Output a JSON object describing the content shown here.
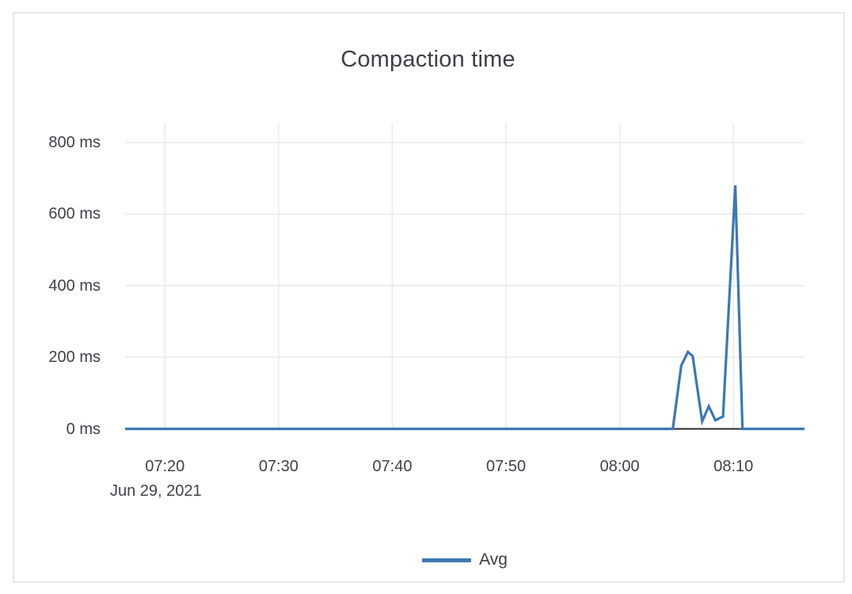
{
  "colors": {
    "line": "#3c78b4",
    "grid": "#ebebeb",
    "zero_axis": "#2a2a2a",
    "card_border": "#e7e7e7",
    "text": "#3e4349"
  },
  "chart_data": {
    "type": "line",
    "title": "Compaction time",
    "x_axis": {
      "date_label": "Jun 29, 2021",
      "ticks": [
        "07:20",
        "07:30",
        "07:40",
        "07:50",
        "08:00",
        "08:10"
      ],
      "range": [
        "07:16:30",
        "08:16:15"
      ]
    },
    "y_axis": {
      "unit": "ms",
      "ticks": [
        {
          "label": "0 ms",
          "value": 0
        },
        {
          "label": "200 ms",
          "value": 200
        },
        {
          "label": "400 ms",
          "value": 400
        },
        {
          "label": "600 ms",
          "value": 600
        },
        {
          "label": "800 ms",
          "value": 800
        }
      ],
      "range": [
        0,
        855
      ]
    },
    "grid": true,
    "legend": {
      "position": "bottom-center",
      "items": [
        {
          "label": "Avg",
          "color": "#3c78b4"
        }
      ]
    },
    "series": [
      {
        "name": "Avg",
        "color": "#3c78b4",
        "points": [
          [
            "07:16:30",
            0
          ],
          [
            "08:04:40",
            0
          ],
          [
            "08:05:25",
            177
          ],
          [
            "08:06:00",
            215
          ],
          [
            "08:06:25",
            203
          ],
          [
            "08:07:15",
            21
          ],
          [
            "08:07:50",
            63
          ],
          [
            "08:08:25",
            24
          ],
          [
            "08:08:55",
            32
          ],
          [
            "08:09:05",
            34
          ],
          [
            "08:10:10",
            680
          ],
          [
            "08:10:48",
            0
          ],
          [
            "08:16:15",
            0
          ]
        ]
      }
    ]
  }
}
